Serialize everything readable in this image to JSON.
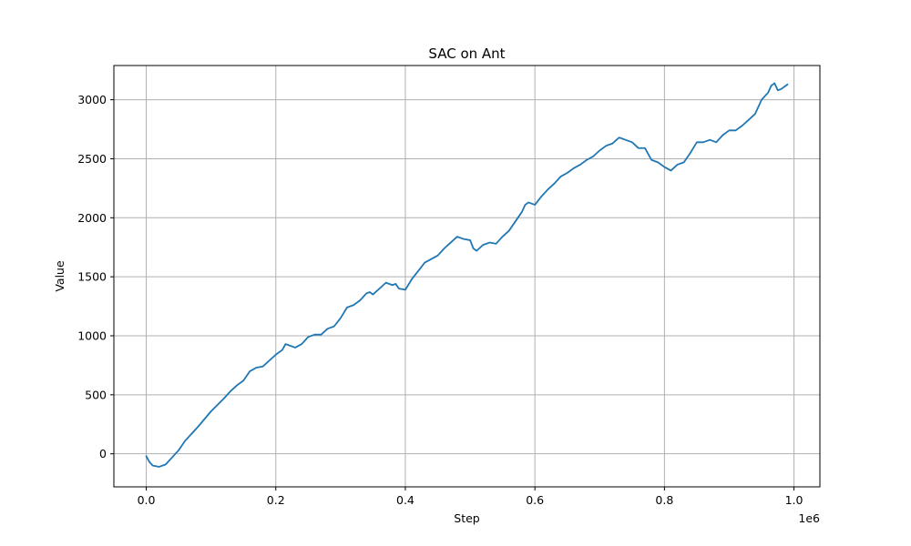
{
  "chart_data": {
    "type": "line",
    "title": "SAC on Ant",
    "xlabel": "Step",
    "ylabel": "Value",
    "x_offset_label": "1e6",
    "xlim": [
      -50000,
      1040000
    ],
    "ylim": [
      -280,
      3290
    ],
    "xticks": [
      0,
      200000,
      400000,
      600000,
      800000,
      1000000
    ],
    "xtick_labels": [
      "0.0",
      "0.2",
      "0.4",
      "0.6",
      "0.8",
      "1.0"
    ],
    "yticks": [
      0,
      500,
      1000,
      1500,
      2000,
      2500,
      3000
    ],
    "ytick_labels": [
      "0",
      "500",
      "1000",
      "1500",
      "2000",
      "2500",
      "3000"
    ],
    "grid": true,
    "line_color": "#1f77b4",
    "grid_color": "#b0b0b0",
    "series": [
      {
        "x": [
          0,
          5000,
          10000,
          20000,
          30000,
          40000,
          50000,
          60000,
          70000,
          80000,
          100000,
          120000,
          130000,
          140000,
          150000,
          160000,
          170000,
          180000,
          190000,
          200000,
          210000,
          215000,
          220000,
          230000,
          240000,
          250000,
          260000,
          270000,
          280000,
          285000,
          290000,
          300000,
          310000,
          320000,
          330000,
          340000,
          345000,
          350000,
          360000,
          370000,
          380000,
          385000,
          390000,
          400000,
          410000,
          420000,
          430000,
          440000,
          450000,
          460000,
          470000,
          480000,
          490000,
          500000,
          505000,
          510000,
          520000,
          530000,
          540000,
          550000,
          560000,
          570000,
          580000,
          585000,
          590000,
          600000,
          610000,
          620000,
          630000,
          640000,
          650000,
          660000,
          670000,
          680000,
          690000,
          700000,
          710000,
          720000,
          730000,
          740000,
          750000,
          760000,
          770000,
          775000,
          780000,
          790000,
          800000,
          810000,
          820000,
          830000,
          840000,
          850000,
          860000,
          870000,
          880000,
          890000,
          900000,
          910000,
          920000,
          930000,
          940000,
          950000,
          960000,
          965000,
          970000,
          975000,
          980000,
          990000
        ],
        "y": [
          -20,
          -70,
          -100,
          -110,
          -90,
          -30,
          30,
          110,
          170,
          230,
          360,
          470,
          530,
          580,
          620,
          700,
          730,
          740,
          790,
          840,
          880,
          930,
          920,
          900,
          930,
          990,
          1010,
          1010,
          1060,
          1070,
          1080,
          1150,
          1240,
          1260,
          1300,
          1360,
          1370,
          1350,
          1400,
          1450,
          1430,
          1440,
          1400,
          1390,
          1480,
          1550,
          1620,
          1650,
          1680,
          1740,
          1790,
          1840,
          1820,
          1810,
          1740,
          1720,
          1770,
          1790,
          1780,
          1840,
          1890,
          1970,
          2050,
          2110,
          2130,
          2110,
          2180,
          2240,
          2290,
          2350,
          2380,
          2420,
          2450,
          2490,
          2520,
          2570,
          2610,
          2630,
          2680,
          2660,
          2640,
          2590,
          2590,
          2540,
          2490,
          2470,
          2430,
          2400,
          2450,
          2470,
          2550,
          2640,
          2640,
          2660,
          2640,
          2700,
          2740,
          2740,
          2780,
          2830,
          2880,
          3000,
          3060,
          3120,
          3140,
          3080,
          3090,
          3130
        ]
      }
    ]
  }
}
